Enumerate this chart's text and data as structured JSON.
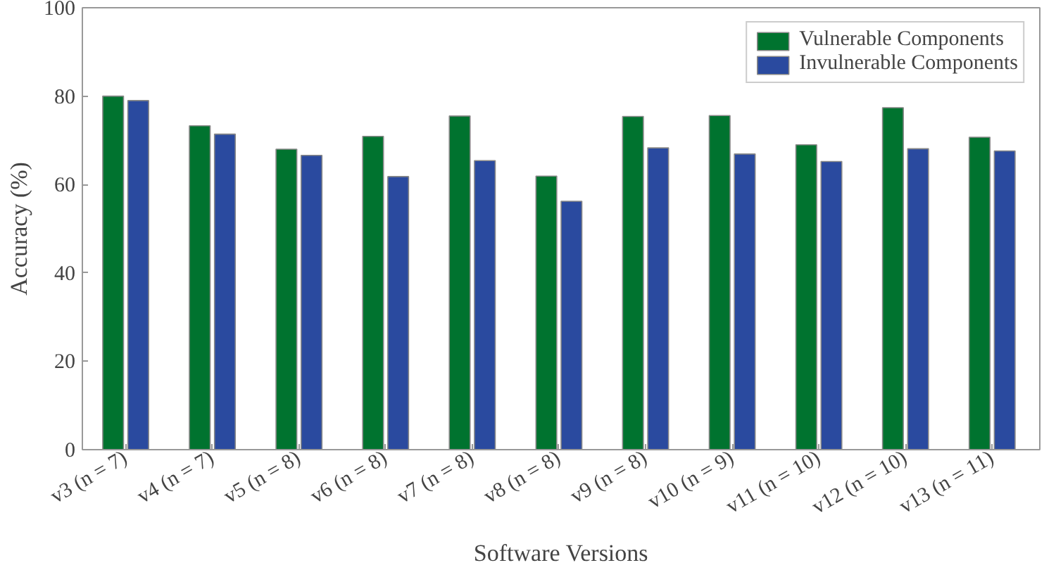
{
  "chart_data": {
    "type": "bar",
    "xlabel": "Software Versions",
    "ylabel": "Accuracy (%)",
    "categories": [
      "v3 (n = 7)",
      "v4 (n = 7)",
      "v5 (n = 8)",
      "v6 (n = 8)",
      "v7 (n = 8)",
      "v8 (n = 8)",
      "v9 (n = 8)",
      "v10 (n = 9)",
      "v11 (n = 10)",
      "v12 (n = 10)",
      "v13 (n = 11)"
    ],
    "series": [
      {
        "name": "Vulnerable Components",
        "color": "#00732f",
        "values": [
          80.0,
          73.3,
          68.0,
          70.9,
          75.5,
          61.9,
          75.4,
          75.6,
          69.0,
          77.4,
          70.7
        ]
      },
      {
        "name": "Invulnerable Components",
        "color": "#2a4a9f",
        "values": [
          79.0,
          71.4,
          66.6,
          61.8,
          65.4,
          56.2,
          68.3,
          66.9,
          65.2,
          68.1,
          67.6
        ]
      }
    ],
    "ylim": [
      0,
      100
    ],
    "yticks": [
      0,
      20,
      40,
      60,
      80,
      100
    ],
    "grid": false,
    "legend": "top right"
  }
}
